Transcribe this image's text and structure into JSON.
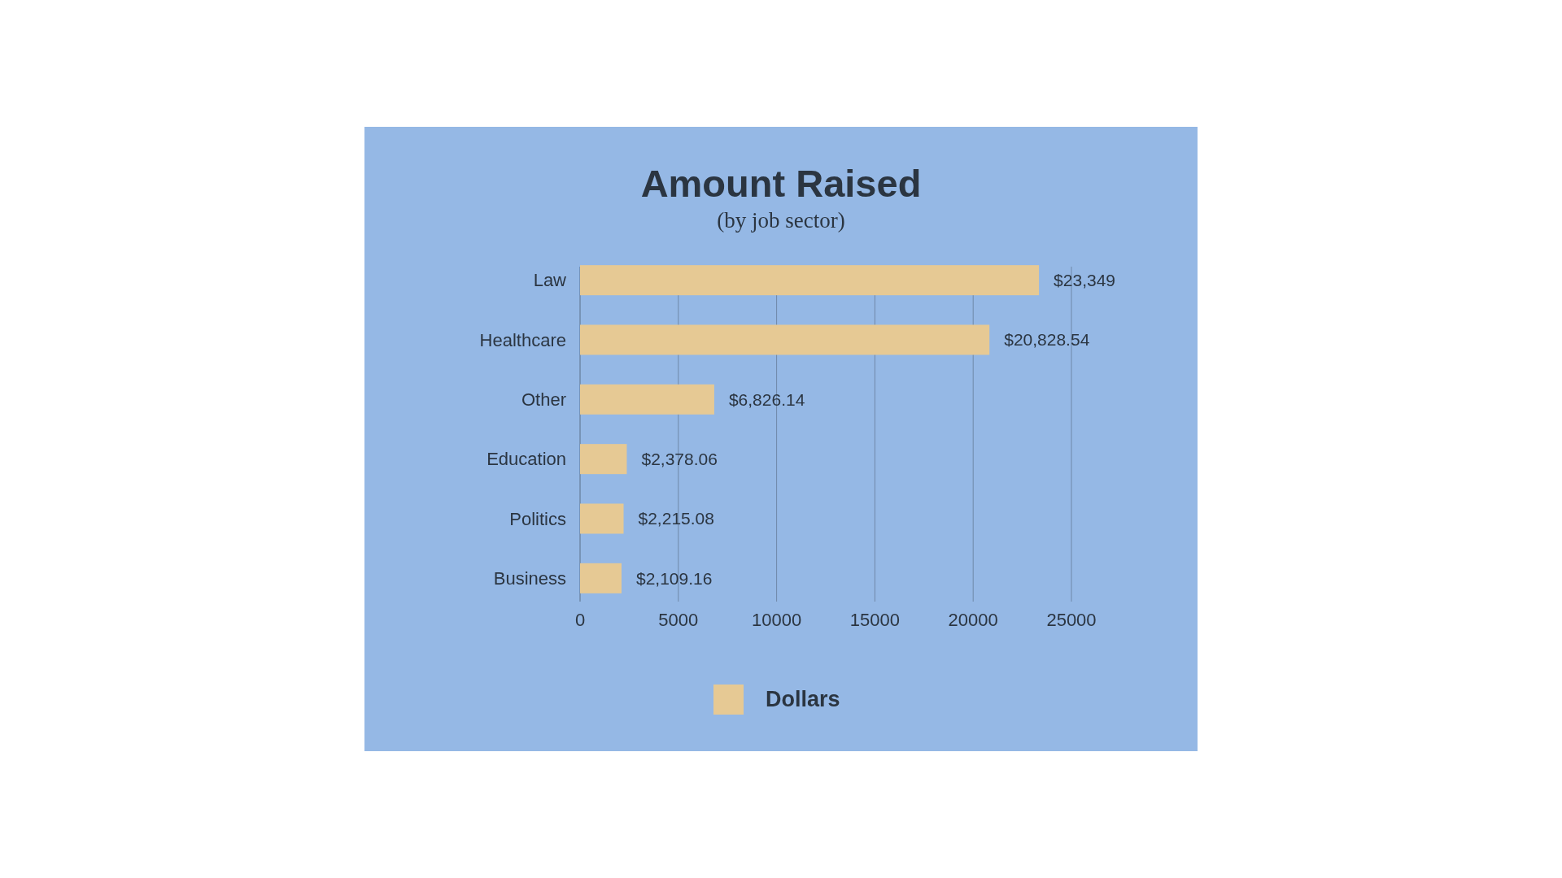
{
  "chart_data": {
    "type": "bar",
    "orientation": "horizontal",
    "title": "Amount Raised",
    "subtitle": "(by job sector)",
    "categories": [
      "Law",
      "Healthcare",
      "Other",
      "Education",
      "Politics",
      "Business"
    ],
    "series": [
      {
        "name": "Dollars",
        "color": "#e6c994",
        "values": [
          23349,
          20828.54,
          6826.14,
          2378.06,
          2215.08,
          2109.16
        ],
        "value_labels": [
          "$23,349",
          "$20,828.54",
          "$6,826.14",
          "$2,378.06",
          "$2,215.08",
          "$2,109.16"
        ]
      }
    ],
    "xlim": [
      0,
      25000
    ],
    "xticks": [
      0,
      5000,
      10000,
      15000,
      20000,
      25000
    ],
    "grid": "x",
    "legend": "bottom"
  }
}
